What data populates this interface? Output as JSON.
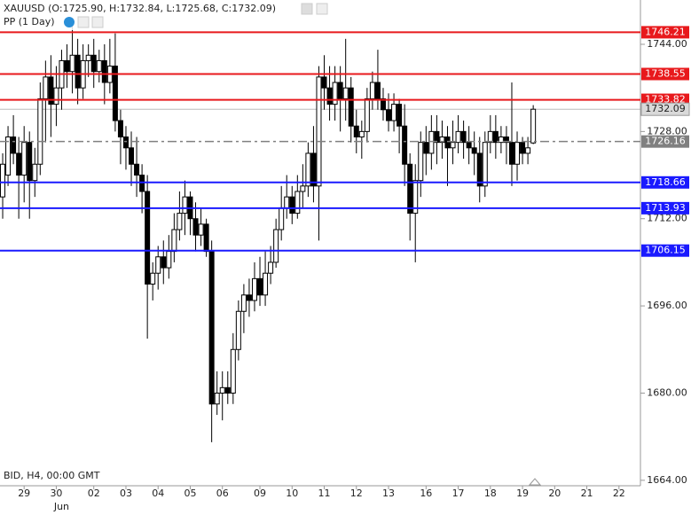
{
  "chart_data": {
    "type": "candlestick",
    "title": "XAUUSD (O:1725.90, H:1732.84, L:1725.68, C:1732.09)",
    "subtitle": "PP (1 Day)",
    "footnote": "BID, H4, 00:00 GMT",
    "month_label": "Jun",
    "categories": [
      null,
      null,
      null,
      null,
      "29",
      null,
      null,
      null,
      null,
      null,
      "30",
      null,
      null,
      null,
      null,
      null,
      null,
      "02",
      null,
      null,
      null,
      null,
      null,
      "03",
      null,
      null,
      null,
      null,
      null,
      "04",
      null,
      null,
      null,
      null,
      null,
      "05",
      null,
      null,
      null,
      null,
      null,
      "06",
      null,
      null,
      null,
      null,
      null,
      null,
      "09",
      null,
      null,
      null,
      null,
      null,
      "10",
      null,
      null,
      null,
      null,
      null,
      "11",
      null,
      null,
      null,
      null,
      null,
      "12",
      null,
      null,
      null,
      null,
      null,
      "13",
      null,
      null,
      null,
      null,
      null,
      null,
      "16",
      null,
      null,
      null,
      null,
      null,
      "17",
      null,
      null,
      null,
      null,
      null,
      "18",
      null,
      null,
      null,
      null,
      null,
      "19",
      null,
      null,
      null,
      null,
      null,
      "20",
      null,
      null,
      null,
      null,
      null,
      "21",
      null,
      null,
      null,
      null,
      null,
      "22",
      null,
      null,
      null,
      null
    ],
    "open": [
      1716,
      1720,
      1727,
      1724,
      1720,
      1726,
      1719,
      1722,
      1734,
      1738,
      1733,
      1736,
      1741,
      1739,
      1742,
      1736,
      1741,
      1742,
      1739,
      1741,
      1737,
      1740,
      1730,
      1727,
      1725,
      1722,
      1720,
      1717,
      1700,
      1702,
      1705,
      1703,
      1706,
      1710,
      1713,
      1716,
      1712,
      1709,
      1711,
      1706,
      1678,
      1680,
      1681,
      1680,
      1688,
      1695,
      1698,
      1697,
      1701,
      1698,
      1702,
      1704,
      1710,
      1714,
      1716,
      1713,
      1717,
      1718,
      1724,
      1718,
      1738,
      1736,
      1733,
      1737,
      1734,
      1736,
      1729,
      1727,
      1728,
      1734,
      1737,
      1734,
      1732,
      1730,
      1733,
      1729,
      1722,
      1713,
      1719,
      1726,
      1724,
      1728,
      1726,
      1727,
      1725,
      1726,
      1728,
      1726,
      1725,
      1724,
      1718,
      1726,
      1728,
      1726,
      1727,
      1726,
      1722,
      1726,
      1724,
      1725.9,
      null,
      null,
      null,
      null,
      null,
      null,
      null,
      null,
      null,
      null,
      null,
      null,
      null,
      null,
      null,
      null,
      null,
      null,
      null,
      null
    ],
    "high": [
      1724,
      1729,
      1731,
      1727,
      1729,
      1728,
      1725,
      1737,
      1741,
      1742,
      1740,
      1743,
      1744,
      1748,
      1745,
      1744,
      1744,
      1745,
      1743,
      1744,
      1745,
      1746,
      1732,
      1729,
      1728,
      1727,
      1722,
      1720,
      1704,
      1707,
      1708,
      1709,
      1713,
      1717,
      1719,
      1717,
      1715,
      1714,
      1712,
      1708,
      1684,
      1684,
      1684,
      1691,
      1697,
      1700,
      1701,
      1704,
      1705,
      1706,
      1707,
      1712,
      1718,
      1720,
      1718,
      1720,
      1722,
      1726,
      1729,
      1740,
      1742,
      1740,
      1740,
      1740,
      1745,
      1738,
      1732,
      1730,
      1736,
      1739,
      1743,
      1736,
      1735,
      1735,
      1734,
      1733,
      1724,
      1722,
      1728,
      1729,
      1731,
      1731,
      1730,
      1729,
      1730,
      1731,
      1730,
      1729,
      1728,
      1727,
      1728,
      1731,
      1731,
      1729,
      1729,
      1737,
      1728,
      1727,
      1727,
      1732.84,
      null,
      null,
      null,
      null,
      null,
      null,
      null,
      null,
      null,
      null,
      null,
      null,
      null,
      null,
      null,
      null,
      null,
      null,
      null,
      null
    ],
    "low": [
      1712,
      1718,
      1722,
      1712,
      1715,
      1712,
      1716,
      1720,
      1726,
      1727,
      1729,
      1732,
      1736,
      1735,
      1733,
      1734,
      1738,
      1736,
      1737,
      1733,
      1735,
      1728,
      1722,
      1721,
      1718,
      1716,
      1713,
      1690,
      1697,
      1699,
      1700,
      1701,
      1704,
      1708,
      1709,
      1709,
      1706,
      1707,
      1705,
      1671,
      1676,
      1675,
      1678,
      1678,
      1686,
      1691,
      1694,
      1695,
      1696,
      1696,
      1700,
      1703,
      1708,
      1712,
      1711,
      1712,
      1714,
      1716,
      1715,
      1708,
      1732,
      1730,
      1730,
      1728,
      1730,
      1726,
      1724,
      1723,
      1726,
      1732,
      1732,
      1730,
      1728,
      1728,
      1724,
      1718,
      1708,
      1704,
      1716,
      1720,
      1721,
      1722,
      1723,
      1718,
      1722,
      1724,
      1723,
      1722,
      1720,
      1715,
      1716,
      1724,
      1723,
      1724,
      1722,
      1718,
      1719,
      1722,
      1722,
      1725.68,
      null,
      null,
      null,
      null,
      null,
      null,
      null,
      null,
      null,
      null,
      null,
      null,
      null,
      null,
      null,
      null,
      null,
      null,
      null,
      null
    ],
    "close": [
      1722,
      1727,
      1724,
      1720,
      1726,
      1719,
      1722,
      1734,
      1738,
      1733,
      1736,
      1741,
      1739,
      1742,
      1736,
      1741,
      1742,
      1739,
      1741,
      1737,
      1740,
      1730,
      1727,
      1725,
      1722,
      1720,
      1717,
      1700,
      1702,
      1705,
      1703,
      1706,
      1710,
      1713,
      1716,
      1712,
      1709,
      1711,
      1706,
      1678,
      1680,
      1681,
      1680,
      1688,
      1695,
      1698,
      1697,
      1701,
      1698,
      1702,
      1704,
      1710,
      1714,
      1716,
      1713,
      1717,
      1718,
      1724,
      1718,
      1738,
      1736,
      1733,
      1737,
      1734,
      1736,
      1729,
      1727,
      1728,
      1734,
      1737,
      1734,
      1732,
      1730,
      1733,
      1729,
      1722,
      1713,
      1719,
      1726,
      1724,
      1728,
      1726,
      1727,
      1725,
      1726,
      1728,
      1726,
      1725,
      1724,
      1718,
      1726,
      1728,
      1726,
      1727,
      1726,
      1722,
      1726,
      1724,
      1725,
      1732.09,
      null,
      null,
      null,
      null,
      null,
      null,
      null,
      null,
      null,
      null,
      null,
      null,
      null,
      null,
      null,
      null,
      null,
      null,
      null,
      null
    ],
    "levels": [
      {
        "value": 1746.21,
        "color": "#e8191c",
        "style": "solid"
      },
      {
        "value": 1738.55,
        "color": "#e8191c",
        "style": "solid"
      },
      {
        "value": 1733.82,
        "color": "#e8191c",
        "style": "solid"
      },
      {
        "value": 1726.16,
        "color": "#808080",
        "style": "dashed"
      },
      {
        "value": 1718.66,
        "color": "#1a1aff",
        "style": "solid"
      },
      {
        "value": 1713.93,
        "color": "#1a1aff",
        "style": "solid"
      },
      {
        "value": 1706.15,
        "color": "#1a1aff",
        "style": "solid"
      }
    ],
    "last_price": 1732.09,
    "ylim": [
      1663,
      1752.13
    ],
    "yticks": [
      {
        "value": 1664,
        "label": "1664.00"
      },
      {
        "value": 1680,
        "label": "1680.00"
      },
      {
        "value": 1696,
        "label": "1696.00"
      },
      {
        "value": 1712,
        "label": "1712.00"
      },
      {
        "value": 1728,
        "label": "1728.00"
      },
      {
        "value": 1744,
        "label": "1744.00"
      }
    ]
  }
}
